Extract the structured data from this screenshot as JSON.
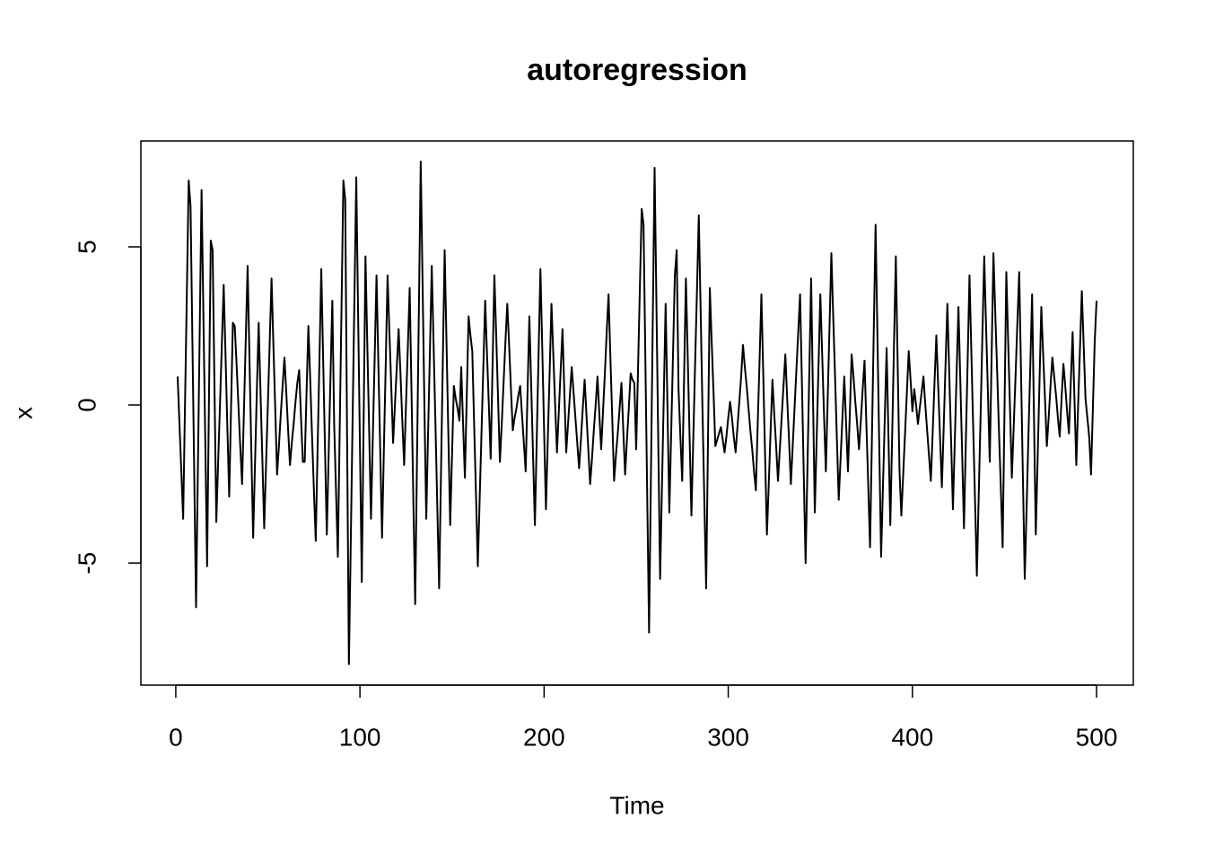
{
  "chart_data": {
    "type": "line",
    "title": "autoregression",
    "x_label": "Time",
    "y_label": "x",
    "color": "#000000",
    "grid": false,
    "xlim": [
      -18.96,
      519.96
    ],
    "xticks": [
      0,
      100,
      200,
      300,
      400,
      500
    ],
    "ylim": [
      -8.86,
      8.35
    ],
    "yticks": [
      -5,
      0,
      5
    ],
    "x": [
      1,
      2,
      3,
      4,
      5,
      6,
      7,
      8,
      9,
      10,
      11,
      12,
      13,
      14,
      15,
      16,
      17,
      18,
      19,
      20,
      21,
      22,
      23,
      24,
      25,
      26,
      27,
      28,
      29,
      30,
      31,
      32,
      33,
      34,
      35,
      36,
      37,
      38,
      39,
      40,
      41,
      42,
      43,
      44,
      45,
      46,
      47,
      48,
      49,
      50,
      51,
      52,
      53,
      54,
      55,
      56,
      57,
      58,
      59,
      60,
      61,
      62,
      63,
      64,
      65,
      66,
      67,
      68,
      69,
      70,
      71,
      72,
      73,
      74,
      75,
      76,
      77,
      78,
      79,
      80,
      81,
      82,
      83,
      84,
      85,
      86,
      87,
      88,
      89,
      90,
      91,
      92,
      93,
      94,
      95,
      96,
      97,
      98,
      99,
      100,
      101,
      102,
      103,
      104,
      105,
      106,
      107,
      108,
      109,
      110,
      111,
      112,
      113,
      114,
      115,
      116,
      117,
      118,
      119,
      120,
      121,
      122,
      123,
      124,
      125,
      126,
      127,
      128,
      129,
      130,
      131,
      132,
      133,
      134,
      135,
      136,
      137,
      138,
      139,
      140,
      141,
      142,
      143,
      144,
      145,
      146,
      147,
      148,
      149,
      150,
      151,
      152,
      153,
      154,
      155,
      156,
      157,
      158,
      159,
      160,
      161,
      162,
      163,
      164,
      165,
      166,
      167,
      168,
      169,
      170,
      171,
      172,
      173,
      174,
      175,
      176,
      177,
      178,
      179,
      180,
      181,
      182,
      183,
      184,
      185,
      186,
      187,
      188,
      189,
      190,
      191,
      192,
      193,
      194,
      195,
      196,
      197,
      198,
      199,
      200,
      201,
      202,
      203,
      204,
      205,
      206,
      207,
      208,
      209,
      210,
      211,
      212,
      213,
      214,
      215,
      216,
      217,
      218,
      219,
      220,
      221,
      222,
      223,
      224,
      225,
      226,
      227,
      228,
      229,
      230,
      231,
      232,
      233,
      234,
      235,
      236,
      237,
      238,
      239,
      240,
      241,
      242,
      243,
      244,
      245,
      246,
      247,
      248,
      249,
      250,
      251,
      252,
      253,
      254,
      255,
      256,
      257,
      258,
      259,
      260,
      261,
      262,
      263,
      264,
      265,
      266,
      267,
      268,
      269,
      270,
      271,
      272,
      273,
      274,
      275,
      276,
      277,
      278,
      279,
      280,
      281,
      282,
      283,
      284,
      285,
      286,
      287,
      288,
      289,
      290,
      291,
      292,
      293,
      294,
      295,
      296,
      297,
      298,
      299,
      300,
      301,
      302,
      303,
      304,
      305,
      306,
      307,
      308,
      309,
      310,
      311,
      312,
      313,
      314,
      315,
      316,
      317,
      318,
      319,
      320,
      321,
      322,
      323,
      324,
      325,
      326,
      327,
      328,
      329,
      330,
      331,
      332,
      333,
      334,
      335,
      336,
      337,
      338,
      339,
      340,
      341,
      342,
      343,
      344,
      345,
      346,
      347,
      348,
      349,
      350,
      351,
      352,
      353,
      354,
      355,
      356,
      357,
      358,
      359,
      360,
      361,
      362,
      363,
      364,
      365,
      366,
      367,
      368,
      369,
      370,
      371,
      372,
      373,
      374,
      375,
      376,
      377,
      378,
      379,
      380,
      381,
      382,
      383,
      384,
      385,
      386,
      387,
      388,
      389,
      390,
      391,
      392,
      393,
      394,
      395,
      396,
      397,
      398,
      399,
      400,
      401,
      402,
      403,
      404,
      405,
      406,
      407,
      408,
      409,
      410,
      411,
      412,
      413,
      414,
      415,
      416,
      417,
      418,
      419,
      420,
      421,
      422,
      423,
      424,
      425,
      426,
      427,
      428,
      429,
      430,
      431,
      432,
      433,
      434,
      435,
      436,
      437,
      438,
      439,
      440,
      441,
      442,
      443,
      444,
      445,
      446,
      447,
      448,
      449,
      450,
      451,
      452,
      453,
      454,
      455,
      456,
      457,
      458,
      459,
      460,
      461,
      462,
      463,
      464,
      465,
      466,
      467,
      468,
      469,
      470,
      471,
      472,
      473,
      474,
      475,
      476,
      477,
      478,
      479,
      480,
      481,
      482,
      483,
      484,
      485,
      486,
      487,
      488,
      489,
      490,
      491,
      492,
      493,
      494,
      495,
      496,
      497,
      498,
      499,
      500
    ],
    "values": [
      0.9,
      -0.6,
      -2.1,
      -3.6,
      0.0,
      3.5,
      7.1,
      6.3,
      2.1,
      -2.1,
      -6.4,
      -2.0,
      2.4,
      6.8,
      2.8,
      -1.1,
      -5.1,
      0.1,
      5.2,
      4.9,
      0.6,
      -3.7,
      -1.8,
      0.0,
      1.9,
      3.8,
      1.6,
      -0.7,
      -2.9,
      -0.1,
      2.6,
      2.5,
      1.3,
      0.0,
      -1.3,
      -2.5,
      -0.2,
      2.1,
      4.4,
      1.5,
      -1.4,
      -4.2,
      -1.9,
      0.4,
      2.6,
      0.4,
      -1.7,
      -3.9,
      -1.9,
      0.0,
      2.0,
      4.0,
      1.9,
      -0.1,
      -2.2,
      -1.3,
      -0.3,
      0.6,
      1.5,
      0.4,
      -0.8,
      -1.9,
      -1.2,
      -0.6,
      0.1,
      0.7,
      1.1,
      -0.4,
      -1.8,
      -1.8,
      0.4,
      2.5,
      0.8,
      -1.0,
      -2.7,
      -4.3,
      -1.4,
      1.4,
      4.3,
      1.5,
      -1.3,
      -4.1,
      -1.6,
      0.9,
      3.3,
      -0.6,
      -2.7,
      -4.8,
      -0.8,
      3.1,
      7.1,
      6.5,
      -0.9,
      -8.2,
      -4.4,
      -0.5,
      3.4,
      7.2,
      2.9,
      -1.3,
      -5.6,
      -0.5,
      4.7,
      1.9,
      -0.8,
      -3.6,
      -1.0,
      1.5,
      4.1,
      1.3,
      -1.4,
      -4.2,
      -1.4,
      1.3,
      4.1,
      2.3,
      0.6,
      -1.2,
      0.0,
      1.2,
      2.4,
      1.0,
      -0.5,
      -1.9,
      0.0,
      1.8,
      3.7,
      0.4,
      -3.0,
      -6.3,
      -1.6,
      3.0,
      7.7,
      3.9,
      0.0,
      -3.6,
      -0.9,
      1.7,
      4.4,
      1.9,
      -0.6,
      -3.2,
      -5.8,
      -2.2,
      1.4,
      4.9,
      2.0,
      -0.9,
      -3.8,
      -1.6,
      0.6,
      0.2,
      -0.1,
      -0.5,
      1.2,
      -0.6,
      -2.3,
      0.3,
      2.8,
      2.2,
      1.7,
      -0.6,
      -2.8,
      -5.1,
      -3.0,
      -0.9,
      1.2,
      3.3,
      1.6,
      0.0,
      -1.7,
      1.2,
      4.1,
      2.2,
      0.2,
      -1.8,
      -0.6,
      0.7,
      2.0,
      3.2,
      1.9,
      0.5,
      -0.8,
      -0.4,
      -0.1,
      0.3,
      0.6,
      -0.3,
      -1.2,
      -2.1,
      0.4,
      2.8,
      0.6,
      -1.6,
      -3.8,
      -1.1,
      1.6,
      4.3,
      1.8,
      -0.8,
      -3.3,
      -1.1,
      1.0,
      3.2,
      1.6,
      0.0,
      -1.5,
      -0.2,
      1.1,
      2.4,
      0.4,
      -1.5,
      -0.6,
      0.3,
      1.2,
      0.4,
      -0.4,
      -1.2,
      -2.0,
      -1.1,
      -0.1,
      0.8,
      -0.3,
      -1.4,
      -2.5,
      -1.7,
      -0.8,
      0.0,
      0.9,
      -0.3,
      -1.4,
      -0.2,
      1.0,
      2.3,
      3.5,
      1.5,
      -0.4,
      -2.4,
      -1.6,
      -0.9,
      -0.1,
      0.7,
      -0.8,
      -2.2,
      -1.1,
      -0.1,
      1.0,
      0.8,
      0.7,
      -1.4,
      1.1,
      3.7,
      6.2,
      5.7,
      1.4,
      -2.9,
      -7.2,
      -2.3,
      2.6,
      7.5,
      3.2,
      -1.2,
      -5.5,
      -2.6,
      0.3,
      3.2,
      -0.1,
      -3.4,
      -0.9,
      1.6,
      4.1,
      4.9,
      0.5,
      -1.0,
      -2.4,
      0.8,
      4.0,
      1.5,
      -1.0,
      -3.5,
      -1.1,
      1.3,
      3.6,
      6.0,
      3.0,
      -0.1,
      -3.0,
      -5.8,
      -1.1,
      3.7,
      2.0,
      0.4,
      -1.3,
      -1.1,
      -0.9,
      -0.7,
      -1.1,
      -1.5,
      -1.0,
      -0.4,
      0.1,
      -0.4,
      -1.0,
      -1.5,
      -0.7,
      0.1,
      0.9,
      1.9,
      1.2,
      0.6,
      -0.1,
      -0.8,
      -1.4,
      -2.1,
      -2.7,
      -0.6,
      1.4,
      3.5,
      1.0,
      -1.6,
      -4.1,
      -2.5,
      -0.8,
      0.8,
      -0.3,
      -1.3,
      -2.4,
      -1.4,
      -0.4,
      0.6,
      1.6,
      0.2,
      -1.1,
      -2.5,
      -1.3,
      -0.1,
      1.1,
      2.3,
      3.5,
      0.7,
      -2.2,
      -5.0,
      -2.0,
      1.0,
      4.0,
      0.3,
      -3.4,
      -1.1,
      1.2,
      3.5,
      1.6,
      -0.3,
      -2.1,
      0.2,
      2.5,
      4.8,
      2.8,
      0.9,
      -1.1,
      -3.0,
      -1.7,
      -0.4,
      0.9,
      -0.6,
      -2.1,
      -0.3,
      1.6,
      0.9,
      0.1,
      -0.6,
      -1.4,
      -0.5,
      0.5,
      1.4,
      -0.6,
      -2.5,
      -4.5,
      -1.1,
      2.3,
      5.7,
      2.2,
      -1.3,
      -4.8,
      -2.6,
      -0.4,
      1.8,
      -1.0,
      -3.8,
      -1.0,
      1.9,
      4.7,
      1.3,
      -2.1,
      -3.5,
      -2.2,
      -0.9,
      0.4,
      1.7,
      0.8,
      -0.2,
      0.5,
      0.0,
      -0.6,
      -0.1,
      0.4,
      0.9,
      0.0,
      -0.8,
      -1.6,
      -2.4,
      -0.9,
      0.7,
      2.2,
      0.6,
      -1.0,
      -2.6,
      -0.7,
      1.3,
      3.2,
      1.0,
      -1.1,
      -3.3,
      -1.2,
      1.0,
      3.1,
      0.8,
      -1.5,
      -3.9,
      -1.2,
      1.4,
      4.1,
      1.7,
      -0.7,
      -3.0,
      -5.4,
      -2.9,
      -0.4,
      2.2,
      4.7,
      2.5,
      0.4,
      -1.8,
      1.5,
      4.8,
      2.9,
      1.1,
      -0.8,
      -2.6,
      -4.5,
      -0.2,
      4.2,
      2.0,
      -0.1,
      -2.3,
      -0.7,
      0.9,
      2.6,
      4.2,
      1.0,
      -2.3,
      -5.5,
      -3.3,
      -1.0,
      1.2,
      3.5,
      -0.3,
      -4.1,
      -1.7,
      0.7,
      3.1,
      1.6,
      0.2,
      -1.3,
      -0.4,
      0.6,
      1.5,
      0.9,
      0.3,
      -0.4,
      -1.0,
      0.2,
      1.3,
      0.6,
      -0.2,
      -0.9,
      0.7,
      2.3,
      0.2,
      -1.9,
      0.0,
      1.8,
      3.6,
      1.9,
      0.2,
      -0.4,
      -1.0,
      -2.2,
      -0.1,
      2.0,
      3.3
    ]
  }
}
